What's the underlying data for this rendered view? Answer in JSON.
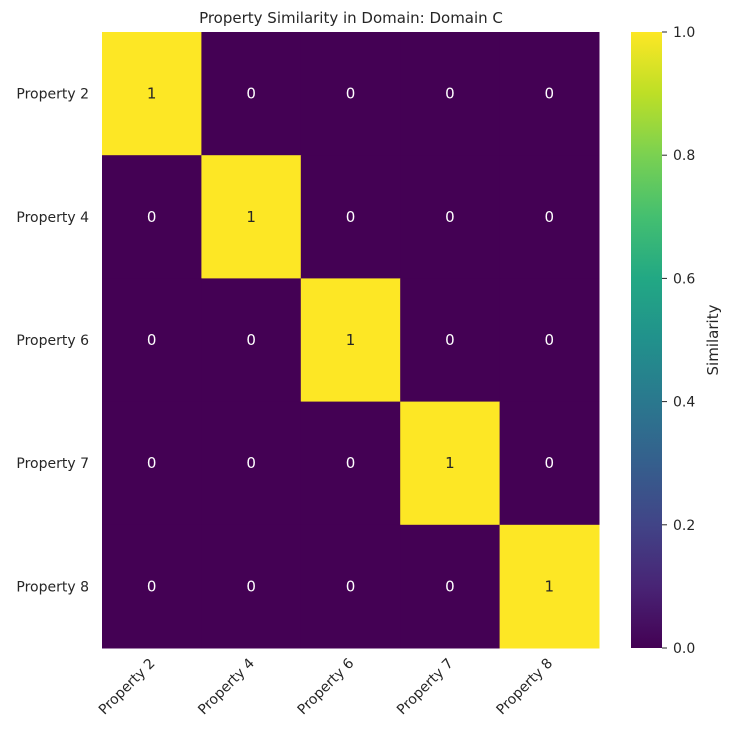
{
  "chart_data": {
    "type": "heatmap",
    "title": "Property Similarity in Domain: Domain C",
    "x_categories": [
      "Property 2",
      "Property 4",
      "Property 6",
      "Property 7",
      "Property 8"
    ],
    "y_categories": [
      "Property 2",
      "Property 4",
      "Property 6",
      "Property 7",
      "Property 8"
    ],
    "values": [
      [
        1,
        0,
        0,
        0,
        0
      ],
      [
        0,
        1,
        0,
        0,
        0
      ],
      [
        0,
        0,
        1,
        0,
        0
      ],
      [
        0,
        0,
        0,
        1,
        0
      ],
      [
        0,
        0,
        0,
        0,
        1
      ]
    ],
    "annotations": true,
    "colormap": "viridis",
    "vmin": 0.0,
    "vmax": 1.0,
    "colorbar": {
      "label": "Similarity",
      "ticks": [
        "0.0",
        "0.2",
        "0.4",
        "0.6",
        "0.8",
        "1.0"
      ]
    },
    "colors": {
      "low": "#440154",
      "high": "#fde725"
    }
  }
}
